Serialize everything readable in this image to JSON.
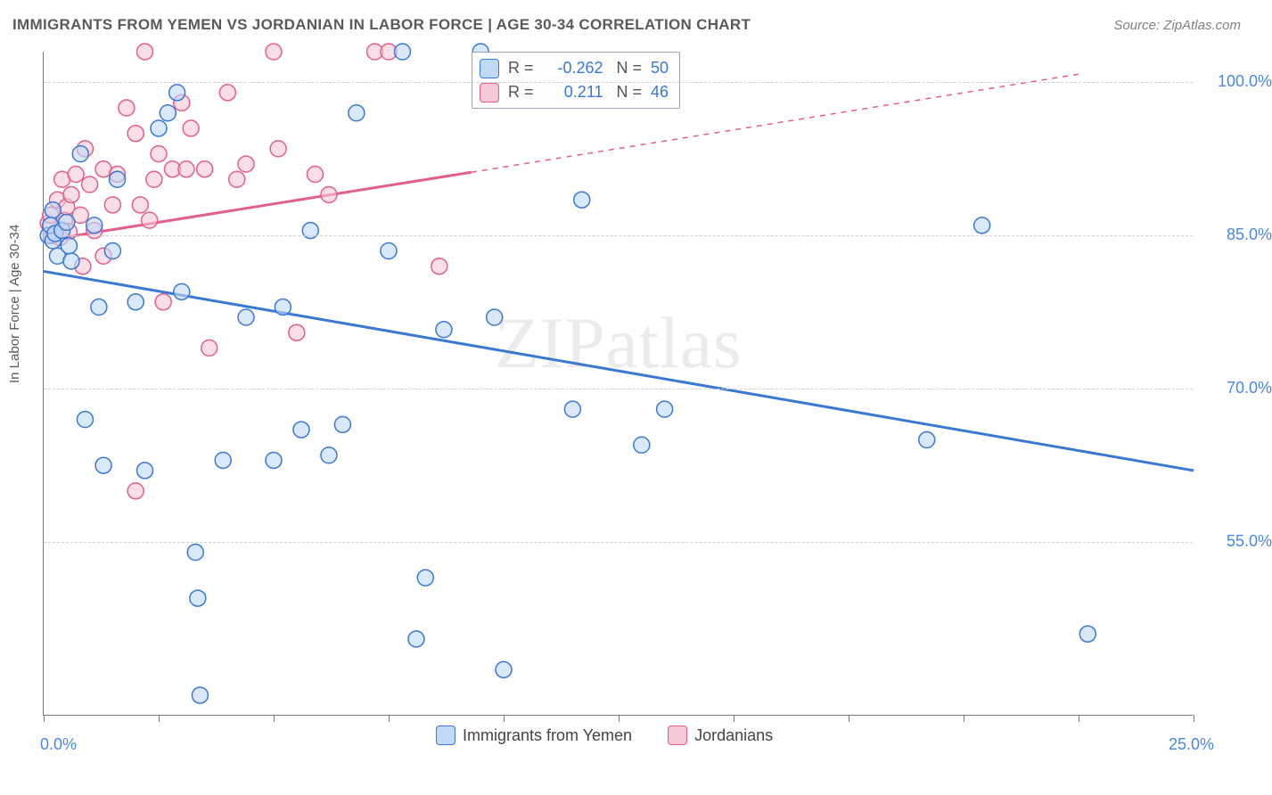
{
  "header": {
    "title": "IMMIGRANTS FROM YEMEN VS JORDANIAN IN LABOR FORCE | AGE 30-34 CORRELATION CHART",
    "source": "Source: ZipAtlas.com"
  },
  "watermark": "ZIPatlas",
  "axes": {
    "ylabel": "In Labor Force | Age 30-34",
    "xlim": [
      0,
      25
    ],
    "ylim": [
      38,
      103
    ],
    "x_ticks": [
      0,
      2.5,
      5,
      7.5,
      10,
      12.5,
      15,
      17.5,
      20,
      22.5,
      25
    ],
    "x_tick_labels": {
      "0": "0.0%",
      "25": "25.0%"
    },
    "y_grid": [
      55,
      70,
      85,
      100
    ],
    "y_labels": {
      "55": "55.0%",
      "70": "70.0%",
      "85": "85.0%",
      "100": "100.0%"
    }
  },
  "styling": {
    "bg": "#ffffff",
    "axis_color": "#777777",
    "grid_color": "#cfcfcf",
    "label_color": "#4a87e8",
    "title_color": "#5a5a5a",
    "marker_radius": 9,
    "marker_stroke": 1.5,
    "reg_line_width": 3
  },
  "series": {
    "yemen": {
      "label": "Immigrants from Yemen",
      "fill": "#c0d9f6",
      "fill_opacity": 0.6,
      "stroke": "#3a78d6",
      "points": [
        [
          0.1,
          85.0
        ],
        [
          0.2,
          87.5
        ],
        [
          0.2,
          84.5
        ],
        [
          0.15,
          86.0
        ],
        [
          0.25,
          85.2
        ],
        [
          0.3,
          83.0
        ],
        [
          0.4,
          85.5
        ],
        [
          0.5,
          86.3
        ],
        [
          0.6,
          82.5
        ],
        [
          0.8,
          93.0
        ],
        [
          1.1,
          86.0
        ],
        [
          1.2,
          78.0
        ],
        [
          1.5,
          83.5
        ],
        [
          0.9,
          67.0
        ],
        [
          1.3,
          62.5
        ],
        [
          1.6,
          90.5
        ],
        [
          2.0,
          78.5
        ],
        [
          2.2,
          62.0
        ],
        [
          2.5,
          95.5
        ],
        [
          2.7,
          97.0
        ],
        [
          2.9,
          99.0
        ],
        [
          3.0,
          79.5
        ],
        [
          3.3,
          54.0
        ],
        [
          3.35,
          49.5
        ],
        [
          3.4,
          40.0
        ],
        [
          3.9,
          63.0
        ],
        [
          4.4,
          77.0
        ],
        [
          5.0,
          63.0
        ],
        [
          5.2,
          78.0
        ],
        [
          5.6,
          66.0
        ],
        [
          5.8,
          85.5
        ],
        [
          6.2,
          63.5
        ],
        [
          6.5,
          66.5
        ],
        [
          6.8,
          97.0
        ],
        [
          7.5,
          83.5
        ],
        [
          7.8,
          103.0
        ],
        [
          8.1,
          45.5
        ],
        [
          8.3,
          51.5
        ],
        [
          8.7,
          75.8
        ],
        [
          9.5,
          103.0
        ],
        [
          10.0,
          42.5
        ],
        [
          11.5,
          68.0
        ],
        [
          11.7,
          88.5
        ],
        [
          13.0,
          64.5
        ],
        [
          13.5,
          68.0
        ],
        [
          19.2,
          65.0
        ],
        [
          20.4,
          86.0
        ],
        [
          22.7,
          46.0
        ],
        [
          9.8,
          77.0
        ],
        [
          0.55,
          84.0
        ]
      ],
      "regression": {
        "x0": 0,
        "y0": 81.5,
        "x1": 25,
        "y1": 62.0
      },
      "R": -0.262,
      "N": 50
    },
    "jordan": {
      "label": "Jordanians",
      "fill": "#f6c8d6",
      "fill_opacity": 0.6,
      "stroke": "#e45e8b",
      "points": [
        [
          0.1,
          86.2
        ],
        [
          0.2,
          85.0
        ],
        [
          0.15,
          87.0
        ],
        [
          0.3,
          88.5
        ],
        [
          0.35,
          84.8
        ],
        [
          0.4,
          90.5
        ],
        [
          0.45,
          86.5
        ],
        [
          0.5,
          87.8
        ],
        [
          0.55,
          85.4
        ],
        [
          0.6,
          89.0
        ],
        [
          0.7,
          91.0
        ],
        [
          0.8,
          87.0
        ],
        [
          0.85,
          82.0
        ],
        [
          0.9,
          93.5
        ],
        [
          1.0,
          90.0
        ],
        [
          1.1,
          85.5
        ],
        [
          1.3,
          91.5
        ],
        [
          1.3,
          83.0
        ],
        [
          1.5,
          88.0
        ],
        [
          1.6,
          91.0
        ],
        [
          1.8,
          97.5
        ],
        [
          2.0,
          95.0
        ],
        [
          2.1,
          88.0
        ],
        [
          2.2,
          103.0
        ],
        [
          2.3,
          86.5
        ],
        [
          2.4,
          90.5
        ],
        [
          2.5,
          93.0
        ],
        [
          2.6,
          78.5
        ],
        [
          2.8,
          91.5
        ],
        [
          3.0,
          98.0
        ],
        [
          3.1,
          91.5
        ],
        [
          3.2,
          95.5
        ],
        [
          3.5,
          91.5
        ],
        [
          3.6,
          74.0
        ],
        [
          4.0,
          99.0
        ],
        [
          4.2,
          90.5
        ],
        [
          4.4,
          92.0
        ],
        [
          5.0,
          103.0
        ],
        [
          5.1,
          93.5
        ],
        [
          5.5,
          75.5
        ],
        [
          5.9,
          91.0
        ],
        [
          6.2,
          89.0
        ],
        [
          7.2,
          103.0
        ],
        [
          7.5,
          103.0
        ],
        [
          8.6,
          82.0
        ],
        [
          2.0,
          60.0
        ]
      ],
      "regression_solid": {
        "x0": 0,
        "y0": 84.5,
        "x1": 9.3,
        "y1": 91.2
      },
      "regression_dashed": {
        "x0": 9.3,
        "y0": 91.2,
        "x1": 22.5,
        "y1": 100.8
      },
      "R": 0.211,
      "N": 46
    }
  },
  "legend_bottom": {
    "items": [
      {
        "swatch": "blue",
        "label_path": "series.yemen.label"
      },
      {
        "swatch": "pink",
        "label_path": "series.jordan.label"
      }
    ]
  }
}
